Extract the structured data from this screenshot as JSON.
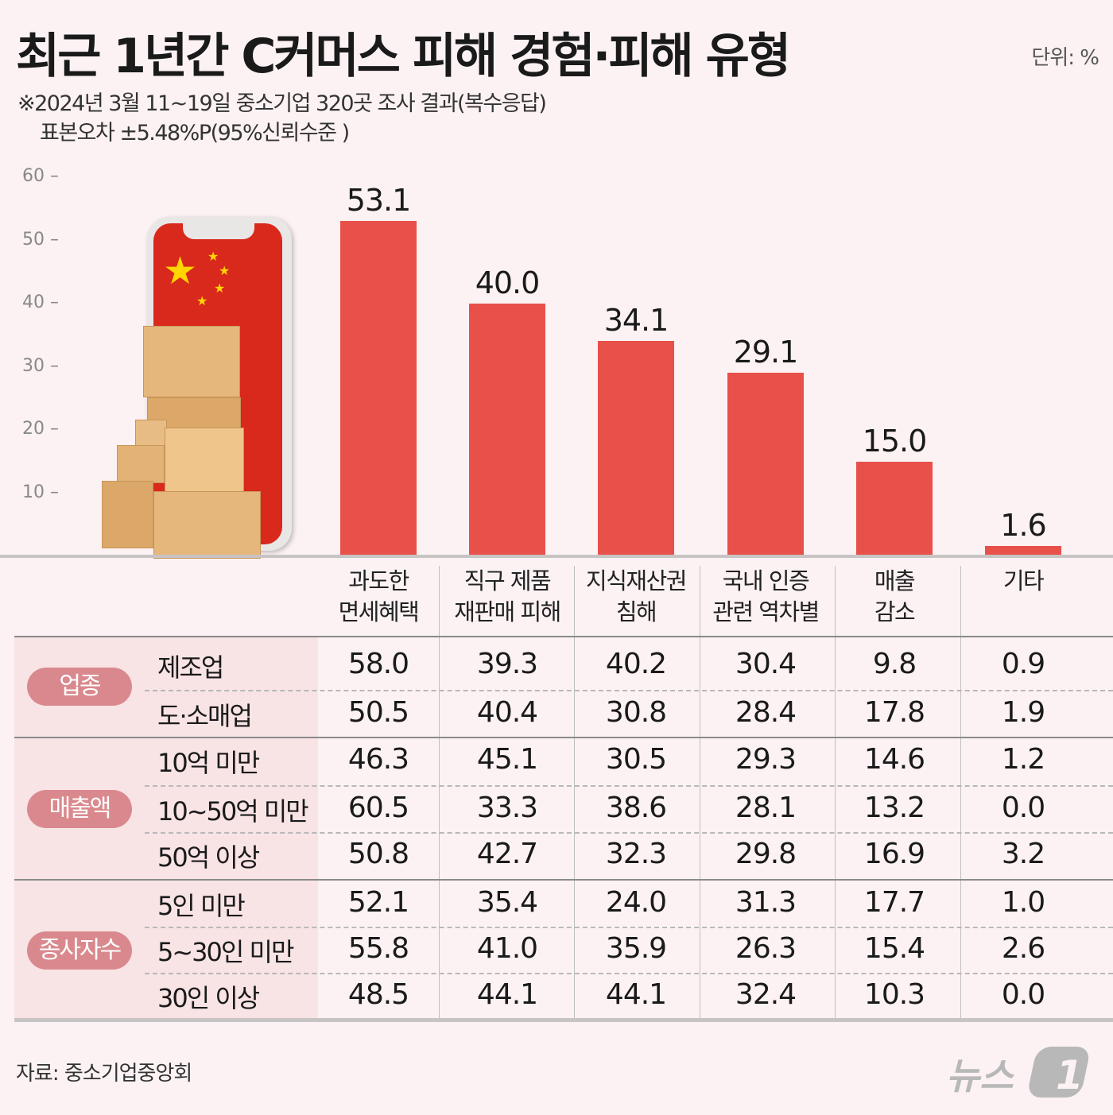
{
  "header": {
    "title": "최근 1년간 C커머스 피해 경험·피해 유형",
    "unit": "단위: %",
    "subtitle_1": "※2024년 3월 11~19일 중소기업 320곳 조사 결과(복수응답)",
    "subtitle_2": "표본오차 ±5.48%P(95%신뢰수준 )"
  },
  "chart_data": {
    "type": "bar",
    "categories": [
      "과도한\n면세혜택",
      "직구 제품\n재판매 피해",
      "지식재산권\n침해",
      "국내 인증\n관련 역차별",
      "매출\n감소",
      "기타"
    ],
    "values": [
      53.1,
      40.0,
      34.1,
      29.1,
      15.0,
      1.6
    ],
    "value_labels": [
      "53.1",
      "40.0",
      "34.1",
      "29.1",
      "15.0",
      "1.6"
    ],
    "yticks": [
      "10",
      "20",
      "30",
      "40",
      "50",
      "60"
    ],
    "ylim": [
      0,
      60
    ],
    "grid": false,
    "bar_color": "#e8504a"
  },
  "table": {
    "columns": [
      [
        "과도한",
        "면세혜택"
      ],
      [
        "직구 제품",
        "재판매 피해"
      ],
      [
        "지식재산권",
        "침해"
      ],
      [
        "국내 인증",
        "관련 역차별"
      ],
      [
        "매출",
        "감소"
      ],
      [
        "기타",
        ""
      ]
    ],
    "groups": [
      {
        "label": "업종",
        "rows": [
          {
            "label": "제조업",
            "values": [
              "58.0",
              "39.3",
              "40.2",
              "30.4",
              "9.8",
              "0.9"
            ]
          },
          {
            "label": "도·소매업",
            "values": [
              "50.5",
              "40.4",
              "30.8",
              "28.4",
              "17.8",
              "1.9"
            ]
          }
        ]
      },
      {
        "label": "매출액",
        "rows": [
          {
            "label": "10억 미만",
            "values": [
              "46.3",
              "45.1",
              "30.5",
              "29.3",
              "14.6",
              "1.2"
            ]
          },
          {
            "label": "10~50억 미만",
            "values": [
              "60.5",
              "33.3",
              "38.6",
              "28.1",
              "13.2",
              "0.0"
            ]
          },
          {
            "label": "50억 이상",
            "values": [
              "50.8",
              "42.7",
              "32.3",
              "29.8",
              "16.9",
              "3.2"
            ]
          }
        ]
      },
      {
        "label": "종사자수",
        "rows": [
          {
            "label": "5인 미만",
            "values": [
              "52.1",
              "35.4",
              "24.0",
              "31.3",
              "17.7",
              "1.0"
            ]
          },
          {
            "label": "5~30인 미만",
            "values": [
              "55.8",
              "41.0",
              "35.9",
              "26.3",
              "15.4",
              "2.6"
            ]
          },
          {
            "label": "30인 이상",
            "values": [
              "48.5",
              "44.1",
              "44.1",
              "32.4",
              "10.3",
              "0.0"
            ]
          }
        ]
      }
    ]
  },
  "footer": {
    "source": "자료: 중소기업중앙회",
    "logo": "뉴스1"
  },
  "colors": {
    "background": "#fcf2f3",
    "bar": "#e8504a",
    "pill": "#d9898d"
  }
}
